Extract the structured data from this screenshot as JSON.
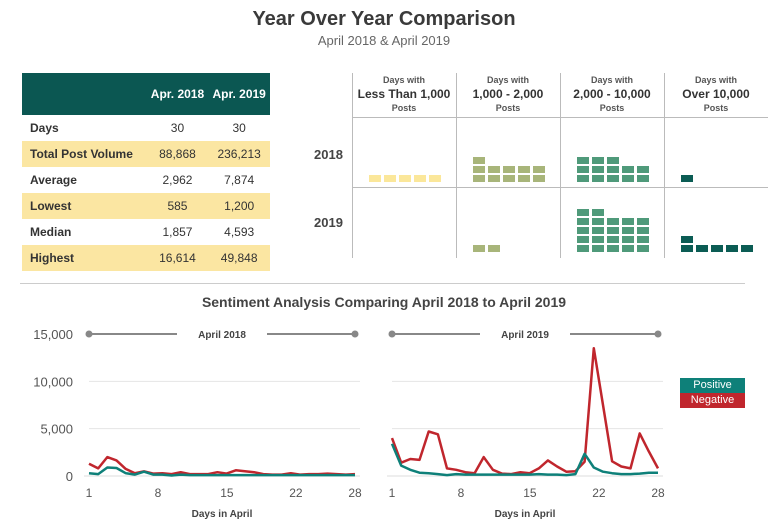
{
  "header": {
    "title": "Year Over Year Comparison",
    "subtitle": "April 2018 & April 2019"
  },
  "stats_table": {
    "columns": [
      "",
      "Apr. 2018",
      "Apr. 2019"
    ],
    "rows": [
      [
        "Days",
        "30",
        "30"
      ],
      [
        "Total Post Volume",
        "88,868",
        "236,213"
      ],
      [
        "Average",
        "2,962",
        "7,874"
      ],
      [
        "Lowest",
        "585",
        "1,200"
      ],
      [
        "Median",
        "1,857",
        "4,593"
      ],
      [
        "Highest",
        "16,614",
        "49,848"
      ]
    ]
  },
  "waffle": {
    "columns": [
      {
        "top": "Days with",
        "main": "Less Than 1,000",
        "bottom": "Posts",
        "color": "#fbe79a"
      },
      {
        "top": "Days with",
        "main": "1,000 - 2,000",
        "bottom": "Posts",
        "color": "#a8b57a"
      },
      {
        "top": "Days with",
        "main": "2,000 - 10,000",
        "bottom": "Posts",
        "color": "#4f9a7a"
      },
      {
        "top": "Days with",
        "main": "Over 10,000",
        "bottom": "Posts",
        "color": "#0b5c54"
      }
    ],
    "rows": [
      {
        "label": "2018",
        "counts": [
          5,
          11,
          13,
          1
        ]
      },
      {
        "label": "2019",
        "counts": [
          0,
          2,
          22,
          6
        ]
      }
    ]
  },
  "chart_data": {
    "type": "line",
    "title": "Sentiment Analysis Comparing April 2018 to April 2019",
    "xlabel": "Days in April",
    "ylim": [
      0,
      15000
    ],
    "yticks": [
      0,
      5000,
      10000,
      15000
    ],
    "ytick_labels": [
      "0",
      "5,000",
      "10,000",
      "15,000"
    ],
    "xtick_labels": [
      "1",
      "8",
      "15",
      "22",
      "28"
    ],
    "legend": {
      "position": "right",
      "entries": [
        {
          "name": "Positive",
          "color": "#0e8079"
        },
        {
          "name": "Negative",
          "color": "#c0262d"
        }
      ]
    },
    "panels": [
      {
        "name": "April 2018",
        "series": [
          {
            "name": "Positive",
            "values": [
              300,
              200,
              900,
              850,
              300,
              150,
              450,
              150,
              150,
              50,
              150,
              100,
              100,
              100,
              100,
              100,
              100,
              100,
              100,
              100,
              100,
              100,
              100,
              100,
              100,
              100,
              100,
              100,
              100,
              100
            ]
          },
          {
            "name": "Negative",
            "values": [
              1300,
              800,
              2000,
              1650,
              750,
              300,
              500,
              250,
              300,
              200,
              400,
              200,
              200,
              200,
              400,
              250,
              600,
              500,
              400,
              200,
              150,
              150,
              300,
              150,
              200,
              200,
              250,
              200,
              150,
              200
            ]
          }
        ]
      },
      {
        "name": "April 2019",
        "series": [
          {
            "name": "Positive",
            "values": [
              3400,
              1100,
              650,
              350,
              300,
              200,
              100,
              200,
              150,
              150,
              150,
              150,
              150,
              150,
              150,
              150,
              200,
              150,
              150,
              100,
              200,
              2350,
              900,
              450,
              300,
              200,
              200,
              250,
              350,
              350
            ]
          },
          {
            "name": "Negative",
            "values": [
              4000,
              1400,
              1800,
              1700,
              4700,
              4400,
              800,
              650,
              400,
              300,
              2000,
              650,
              250,
              200,
              400,
              300,
              800,
              1650,
              1000,
              450,
              500,
              1500,
              13500,
              7500,
              1550,
              1000,
              800,
              4500,
              2600,
              800
            ]
          }
        ]
      }
    ]
  }
}
